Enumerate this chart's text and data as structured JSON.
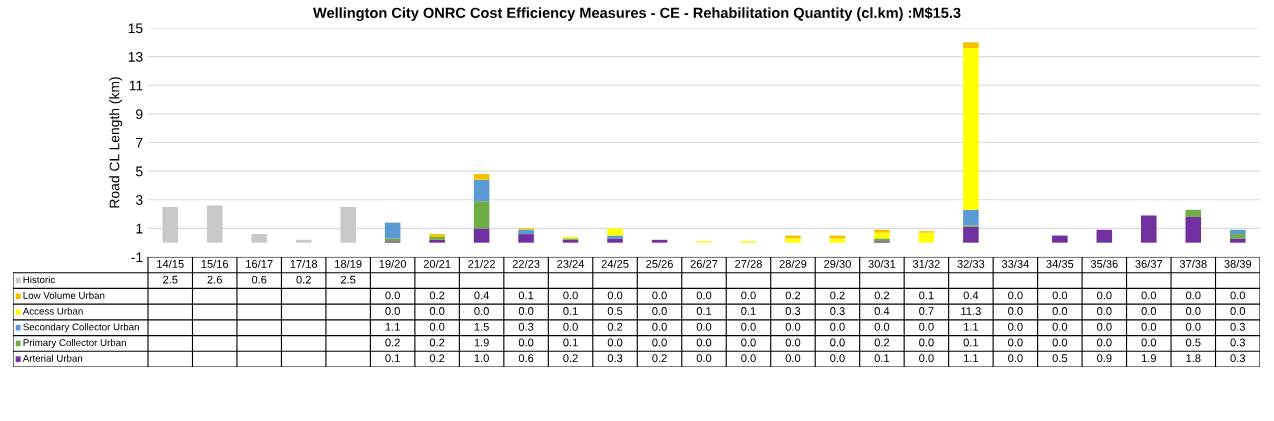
{
  "chart_data": {
    "type": "bar",
    "stacked": true,
    "title": "Wellington City ONRC Cost Efficiency Measures - CE - Rehabilitation Quantity (cl.km) :M$15.3",
    "ylabel": "Road CL Length (km)",
    "categories": [
      "14/15",
      "15/16",
      "16/17",
      "17/18",
      "18/19",
      "19/20",
      "20/21",
      "21/22",
      "22/23",
      "23/24",
      "24/25",
      "25/26",
      "26/27",
      "27/28",
      "28/29",
      "29/30",
      "30/31",
      "31/32",
      "32/33",
      "33/34",
      "34/35",
      "35/36",
      "36/37",
      "37/38",
      "38/39"
    ],
    "series": [
      {
        "name": "Historic",
        "color": "#c8c8c8",
        "values": [
          2.5,
          2.6,
          0.6,
          0.2,
          2.5,
          null,
          null,
          null,
          null,
          null,
          null,
          null,
          null,
          null,
          null,
          null,
          null,
          null,
          null,
          null,
          null,
          null,
          null,
          null,
          null
        ],
        "value_labels": [
          "2.5",
          "2.6",
          "0.6",
          "0.2",
          "2.5",
          null,
          null,
          null,
          null,
          null,
          null,
          null,
          null,
          null,
          null,
          null,
          null,
          null,
          null,
          null,
          null,
          null,
          null,
          null,
          null
        ]
      },
      {
        "name": "Arterial Urban",
        "color": "#7030a0",
        "values": [
          null,
          null,
          null,
          null,
          null,
          0.1,
          0.2,
          1.0,
          0.6,
          0.2,
          0.3,
          0.2,
          0.0,
          0.0,
          0.0,
          0.0,
          0.1,
          0.0,
          1.1,
          0.0,
          0.5,
          0.9,
          1.9,
          1.8,
          0.3
        ],
        "value_labels": [
          null,
          null,
          null,
          null,
          null,
          "0.1",
          "0.2",
          "1.0",
          "0.6",
          "0.2",
          "0.3",
          "0.2",
          "0.0",
          "0.0",
          "0.0",
          "0.0",
          "0.1",
          "0.0",
          "1.1",
          "0.0",
          "0.5",
          "0.9",
          "1.9",
          "1.8",
          "0.3"
        ]
      },
      {
        "name": "Primary Collector Urban",
        "color": "#70ad47",
        "values": [
          null,
          null,
          null,
          null,
          null,
          0.2,
          0.2,
          1.9,
          0.0,
          0.1,
          0.0,
          0.0,
          0.0,
          0.0,
          0.0,
          0.0,
          0.2,
          0.0,
          0.1,
          0.0,
          0.0,
          0.0,
          0.0,
          0.5,
          0.3
        ],
        "value_labels": [
          null,
          null,
          null,
          null,
          null,
          "0.2",
          "0.2",
          "1.9",
          "0.0",
          "0.1",
          "0.0",
          "0.0",
          "0.0",
          "0.0",
          "0.0",
          "0.0",
          "0.2",
          "0.0",
          "0.1",
          "0.0",
          "0.0",
          "0.0",
          "0.0",
          "0.5",
          "0.3"
        ]
      },
      {
        "name": "Secondary Collector Urban",
        "color": "#5b9bd5",
        "values": [
          null,
          null,
          null,
          null,
          null,
          1.1,
          0.0,
          1.5,
          0.3,
          0.0,
          0.2,
          0.0,
          0.0,
          0.0,
          0.0,
          0.0,
          0.0,
          0.0,
          1.1,
          0.0,
          0.0,
          0.0,
          0.0,
          0.0,
          0.3
        ],
        "value_labels": [
          null,
          null,
          null,
          null,
          null,
          "1.1",
          "0.0",
          "1.5",
          "0.3",
          "0.0",
          "0.2",
          "0.0",
          "0.0",
          "0.0",
          "0.0",
          "0.0",
          "0.0",
          "0.0",
          "1.1",
          "0.0",
          "0.0",
          "0.0",
          "0.0",
          "0.0",
          "0.3"
        ]
      },
      {
        "name": "Access Urban",
        "color": "#ffff00",
        "values": [
          null,
          null,
          null,
          null,
          null,
          0.0,
          0.0,
          0.0,
          0.0,
          0.1,
          0.5,
          0.0,
          0.1,
          0.1,
          0.3,
          0.3,
          0.4,
          0.7,
          11.3,
          0.0,
          0.0,
          0.0,
          0.0,
          0.0,
          0.0
        ],
        "value_labels": [
          null,
          null,
          null,
          null,
          null,
          "0.0",
          "0.0",
          "0.0",
          "0.0",
          "0.1",
          "0.5",
          "0.0",
          "0.1",
          "0.1",
          "0.3",
          "0.3",
          "0.4",
          "0.7",
          "11.3",
          "0.0",
          "0.0",
          "0.0",
          "0.0",
          "0.0",
          "0.0"
        ]
      },
      {
        "name": "Low Volume Urban",
        "color": "#f5c000",
        "values": [
          null,
          null,
          null,
          null,
          null,
          0.0,
          0.2,
          0.4,
          0.1,
          0.0,
          0.0,
          0.0,
          0.0,
          0.0,
          0.2,
          0.2,
          0.2,
          0.1,
          0.4,
          0.0,
          0.0,
          0.0,
          0.0,
          0.0,
          0.0
        ],
        "value_labels": [
          null,
          null,
          null,
          null,
          null,
          "0.0",
          "0.2",
          "0.4",
          "0.1",
          "0.0",
          "0.0",
          "0.0",
          "0.0",
          "0.0",
          "0.2",
          "0.2",
          "0.2",
          "0.1",
          "0.4",
          "0.0",
          "0.0",
          "0.0",
          "0.0",
          "0.0",
          "0.0"
        ]
      }
    ],
    "ylim": [
      -1,
      15
    ],
    "yticks": [
      -1,
      1,
      3,
      5,
      7,
      9,
      11,
      13,
      15
    ],
    "grid": "y",
    "legend": "bottom left"
  }
}
